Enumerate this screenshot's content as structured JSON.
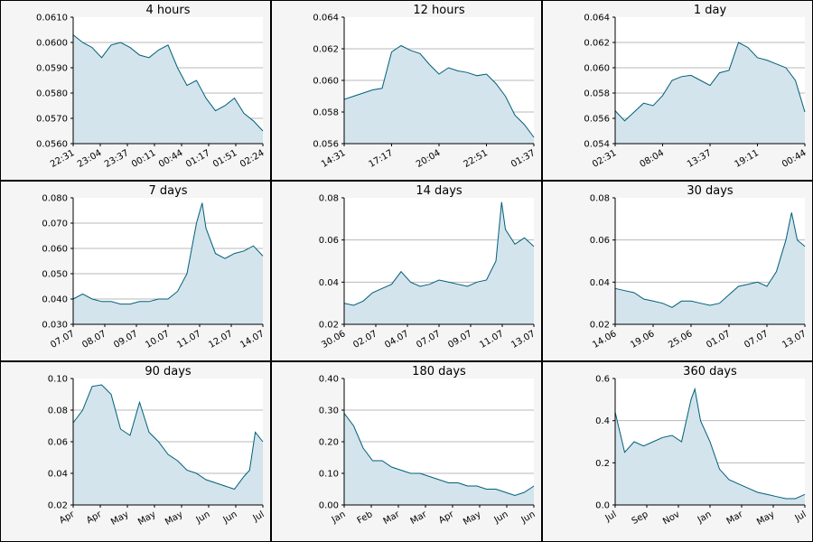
{
  "chart_data": [
    {
      "type": "area",
      "title": "4 hours",
      "ylim": [
        0.056,
        0.061
      ],
      "yticks": [
        "0.0610",
        "0.0600",
        "0.0590",
        "0.0580",
        "0.0570",
        "0.0560"
      ],
      "ytick_values": [
        0.061,
        0.06,
        0.059,
        0.058,
        0.057,
        0.056
      ],
      "xticks": [
        "22:31",
        "23:04",
        "23:37",
        "00:11",
        "00:44",
        "01:17",
        "01:51",
        "02:24"
      ],
      "series": [
        {
          "x": [
            0,
            0.05,
            0.1,
            0.15,
            0.2,
            0.25,
            0.3,
            0.35,
            0.4,
            0.45,
            0.5,
            0.55,
            0.6,
            0.65,
            0.7,
            0.75,
            0.8,
            0.85,
            0.9,
            0.95,
            1.0
          ],
          "values": [
            0.0603,
            0.06,
            0.0598,
            0.0594,
            0.0599,
            0.06,
            0.0598,
            0.0595,
            0.0594,
            0.0597,
            0.0599,
            0.059,
            0.0583,
            0.0585,
            0.0578,
            0.0573,
            0.0575,
            0.0578,
            0.0572,
            0.0569,
            0.0565
          ]
        }
      ]
    },
    {
      "type": "area",
      "title": "12 hours",
      "ylim": [
        0.056,
        0.064
      ],
      "yticks": [
        "0.064",
        "0.062",
        "0.060",
        "0.058",
        "0.056"
      ],
      "ytick_values": [
        0.064,
        0.062,
        0.06,
        0.058,
        0.056
      ],
      "xticks": [
        "14:31",
        "17:17",
        "20:04",
        "22:51",
        "01:37"
      ],
      "series": [
        {
          "x": [
            0,
            0.05,
            0.1,
            0.15,
            0.2,
            0.25,
            0.3,
            0.35,
            0.4,
            0.45,
            0.5,
            0.55,
            0.6,
            0.65,
            0.7,
            0.75,
            0.8,
            0.85,
            0.9,
            0.95,
            1.0
          ],
          "values": [
            0.0588,
            0.059,
            0.0592,
            0.0594,
            0.0595,
            0.0618,
            0.0622,
            0.0619,
            0.0617,
            0.061,
            0.0604,
            0.0608,
            0.0606,
            0.0605,
            0.0603,
            0.0604,
            0.0598,
            0.059,
            0.0578,
            0.0572,
            0.0564
          ]
        }
      ]
    },
    {
      "type": "area",
      "title": "1 day",
      "ylim": [
        0.054,
        0.064
      ],
      "yticks": [
        "0.064",
        "0.062",
        "0.060",
        "0.058",
        "0.056",
        "0.054"
      ],
      "ytick_values": [
        0.064,
        0.062,
        0.06,
        0.058,
        0.056,
        0.054
      ],
      "xticks": [
        "02:31",
        "08:04",
        "13:37",
        "19:11",
        "00:44"
      ],
      "series": [
        {
          "x": [
            0,
            0.05,
            0.1,
            0.15,
            0.2,
            0.25,
            0.3,
            0.35,
            0.4,
            0.45,
            0.5,
            0.55,
            0.6,
            0.65,
            0.7,
            0.75,
            0.8,
            0.85,
            0.9,
            0.95,
            1.0
          ],
          "values": [
            0.0566,
            0.0558,
            0.0565,
            0.0572,
            0.057,
            0.0578,
            0.059,
            0.0593,
            0.0594,
            0.059,
            0.0586,
            0.0596,
            0.0598,
            0.062,
            0.0616,
            0.0608,
            0.0606,
            0.0603,
            0.06,
            0.059,
            0.0565
          ]
        }
      ]
    },
    {
      "type": "area",
      "title": "7 days",
      "ylim": [
        0.03,
        0.08
      ],
      "yticks": [
        "0.080",
        "0.070",
        "0.060",
        "0.050",
        "0.040",
        "0.030"
      ],
      "ytick_values": [
        0.08,
        0.07,
        0.06,
        0.05,
        0.04,
        0.03
      ],
      "xticks": [
        "07.07",
        "08.07",
        "09.07",
        "10.07",
        "11.07",
        "12.07",
        "14.07"
      ],
      "series": [
        {
          "x": [
            0,
            0.05,
            0.1,
            0.15,
            0.2,
            0.25,
            0.3,
            0.35,
            0.4,
            0.45,
            0.5,
            0.55,
            0.6,
            0.65,
            0.68,
            0.7,
            0.75,
            0.8,
            0.85,
            0.9,
            0.95,
            1.0
          ],
          "values": [
            0.04,
            0.042,
            0.04,
            0.039,
            0.039,
            0.038,
            0.038,
            0.039,
            0.039,
            0.04,
            0.04,
            0.043,
            0.05,
            0.07,
            0.078,
            0.068,
            0.058,
            0.056,
            0.058,
            0.059,
            0.061,
            0.057
          ]
        }
      ]
    },
    {
      "type": "area",
      "title": "14 days",
      "ylim": [
        0.02,
        0.08
      ],
      "yticks": [
        "0.08",
        "0.06",
        "0.04",
        "0.02"
      ],
      "ytick_values": [
        0.08,
        0.06,
        0.04,
        0.02
      ],
      "xticks": [
        "30.06",
        "02.07",
        "04.07",
        "07.07",
        "09.07",
        "11.07",
        "13.07"
      ],
      "series": [
        {
          "x": [
            0,
            0.05,
            0.1,
            0.15,
            0.2,
            0.25,
            0.3,
            0.35,
            0.4,
            0.45,
            0.5,
            0.55,
            0.6,
            0.65,
            0.7,
            0.75,
            0.8,
            0.83,
            0.85,
            0.9,
            0.95,
            1.0
          ],
          "values": [
            0.03,
            0.029,
            0.031,
            0.035,
            0.037,
            0.039,
            0.045,
            0.04,
            0.038,
            0.039,
            0.041,
            0.04,
            0.039,
            0.038,
            0.04,
            0.041,
            0.05,
            0.078,
            0.065,
            0.058,
            0.061,
            0.057
          ]
        }
      ]
    },
    {
      "type": "area",
      "title": "30 days",
      "ylim": [
        0.02,
        0.08
      ],
      "yticks": [
        "0.08",
        "0.06",
        "0.04",
        "0.02"
      ],
      "ytick_values": [
        0.08,
        0.06,
        0.04,
        0.02
      ],
      "xticks": [
        "14.06",
        "19.06",
        "25.06",
        "01.07",
        "07.07",
        "13.07"
      ],
      "series": [
        {
          "x": [
            0,
            0.05,
            0.1,
            0.15,
            0.2,
            0.25,
            0.3,
            0.35,
            0.4,
            0.45,
            0.5,
            0.55,
            0.6,
            0.65,
            0.7,
            0.75,
            0.8,
            0.85,
            0.9,
            0.93,
            0.96,
            1.0
          ],
          "values": [
            0.037,
            0.036,
            0.035,
            0.032,
            0.031,
            0.03,
            0.028,
            0.031,
            0.031,
            0.03,
            0.029,
            0.03,
            0.034,
            0.038,
            0.039,
            0.04,
            0.038,
            0.045,
            0.06,
            0.073,
            0.06,
            0.057
          ]
        }
      ]
    },
    {
      "type": "area",
      "title": "90 days",
      "ylim": [
        0.02,
        0.1
      ],
      "yticks": [
        "0.10",
        "0.08",
        "0.06",
        "0.04",
        "0.02"
      ],
      "ytick_values": [
        0.1,
        0.08,
        0.06,
        0.04,
        0.02
      ],
      "xticks": [
        "Apr",
        "Apr",
        "May",
        "May",
        "May",
        "Jun",
        "Jun",
        "Jul"
      ],
      "series": [
        {
          "x": [
            0,
            0.05,
            0.1,
            0.15,
            0.2,
            0.25,
            0.3,
            0.35,
            0.4,
            0.45,
            0.5,
            0.55,
            0.6,
            0.65,
            0.7,
            0.75,
            0.8,
            0.85,
            0.9,
            0.93,
            0.96,
            1.0
          ],
          "values": [
            0.072,
            0.08,
            0.095,
            0.096,
            0.09,
            0.068,
            0.064,
            0.085,
            0.066,
            0.06,
            0.052,
            0.048,
            0.042,
            0.04,
            0.036,
            0.034,
            0.032,
            0.03,
            0.038,
            0.042,
            0.066,
            0.06
          ]
        }
      ]
    },
    {
      "type": "area",
      "title": "180 days",
      "ylim": [
        0.0,
        0.4
      ],
      "yticks": [
        "0.40",
        "0.30",
        "0.20",
        "0.10",
        "0.00"
      ],
      "ytick_values": [
        0.4,
        0.3,
        0.2,
        0.1,
        0.0
      ],
      "xticks": [
        "Jan",
        "Feb",
        "Mar",
        "Mar",
        "Apr",
        "May",
        "Jun",
        "Jun"
      ],
      "series": [
        {
          "x": [
            0,
            0.05,
            0.1,
            0.15,
            0.2,
            0.25,
            0.3,
            0.35,
            0.4,
            0.45,
            0.5,
            0.55,
            0.6,
            0.65,
            0.7,
            0.75,
            0.8,
            0.85,
            0.9,
            0.95,
            1.0
          ],
          "values": [
            0.29,
            0.25,
            0.18,
            0.14,
            0.14,
            0.12,
            0.11,
            0.1,
            0.1,
            0.09,
            0.08,
            0.07,
            0.07,
            0.06,
            0.06,
            0.05,
            0.05,
            0.04,
            0.03,
            0.04,
            0.06
          ]
        }
      ]
    },
    {
      "type": "area",
      "title": "360 days",
      "ylim": [
        0.0,
        0.6
      ],
      "yticks": [
        "0.6",
        "0.4",
        "0.2",
        "0.0"
      ],
      "ytick_values": [
        0.6,
        0.4,
        0.2,
        0.0
      ],
      "xticks": [
        "Jul",
        "Sep",
        "Nov",
        "Jan",
        "Mar",
        "May",
        "Jul"
      ],
      "series": [
        {
          "x": [
            0,
            0.05,
            0.1,
            0.15,
            0.2,
            0.25,
            0.3,
            0.35,
            0.4,
            0.42,
            0.45,
            0.5,
            0.55,
            0.6,
            0.65,
            0.7,
            0.75,
            0.8,
            0.85,
            0.9,
            0.95,
            1.0
          ],
          "values": [
            0.44,
            0.25,
            0.3,
            0.28,
            0.3,
            0.32,
            0.33,
            0.3,
            0.5,
            0.55,
            0.4,
            0.3,
            0.17,
            0.12,
            0.1,
            0.08,
            0.06,
            0.05,
            0.04,
            0.03,
            0.03,
            0.05
          ]
        }
      ]
    }
  ],
  "colors": {
    "line": "#005f7a",
    "fill": "#d4e4ec",
    "grid": "#b8b8b8",
    "panel_bg": "#f5f5f5",
    "plot_bg": "#ffffff"
  }
}
